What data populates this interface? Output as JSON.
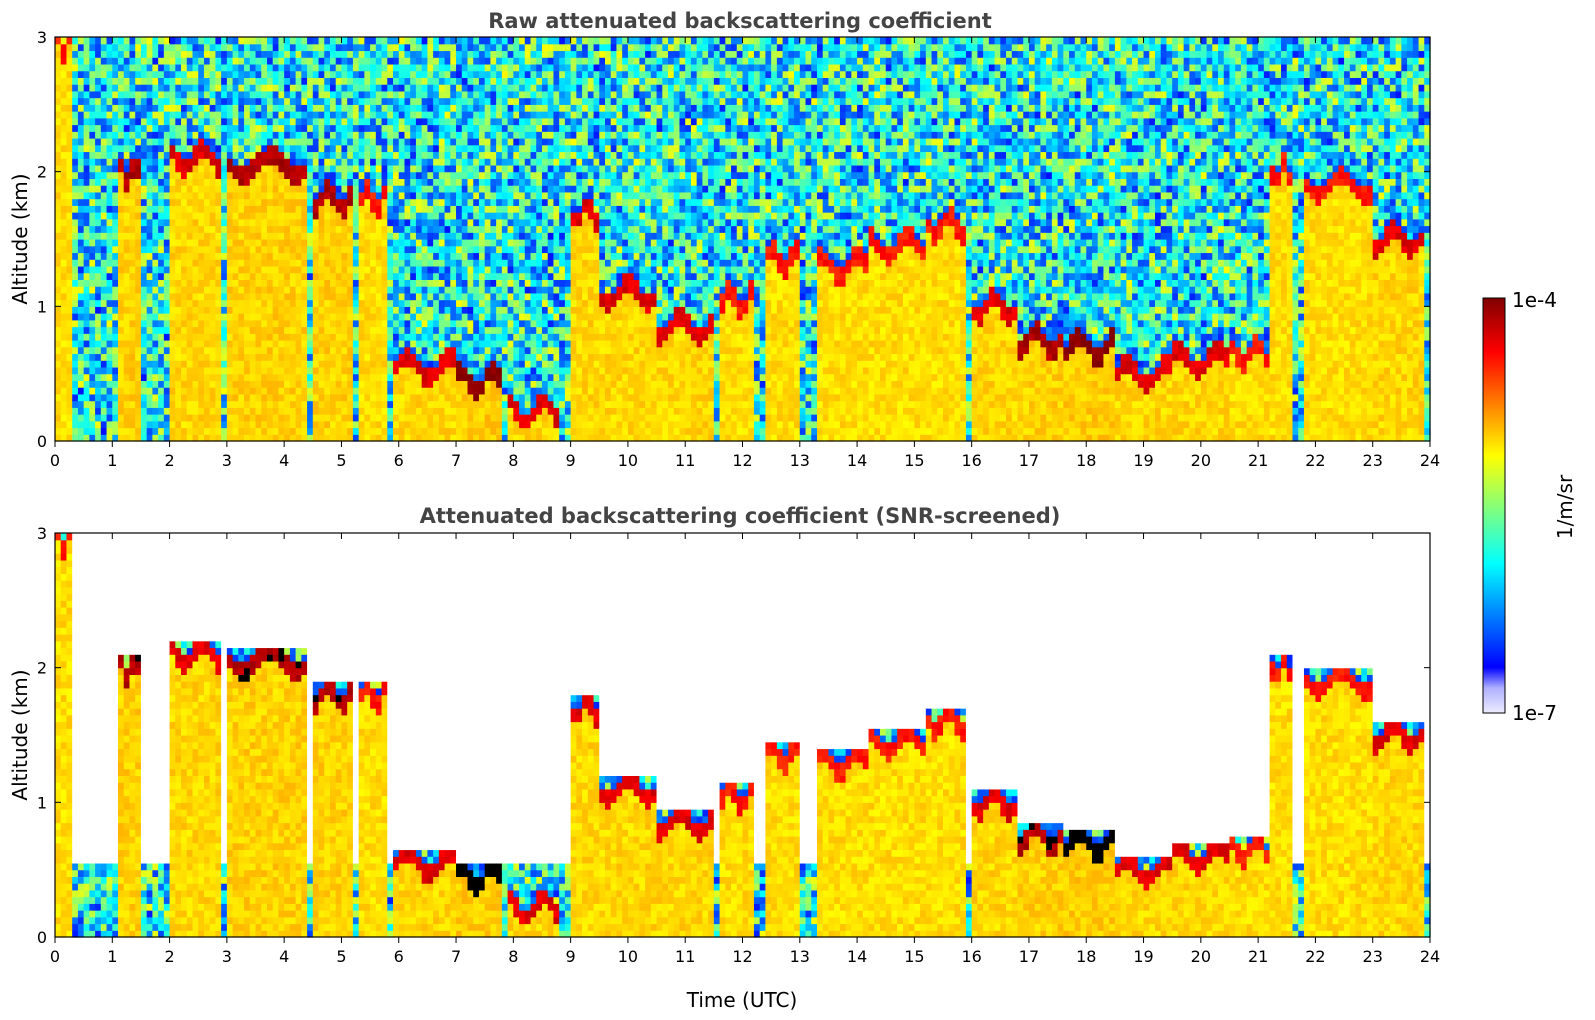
{
  "chart_data": [
    {
      "type": "heatmap",
      "title": "Raw attenuated backscattering coefficient",
      "xlabel": "",
      "ylabel": "Altitude (km)",
      "xlim": [
        0,
        24
      ],
      "ylim": [
        0,
        3
      ],
      "xticks": [
        "0",
        "1",
        "2",
        "3",
        "4",
        "5",
        "6",
        "7",
        "8",
        "9",
        "10",
        "11",
        "12",
        "13",
        "14",
        "15",
        "16",
        "17",
        "18",
        "19",
        "20",
        "21",
        "22",
        "23",
        "24"
      ],
      "yticks": [
        "0",
        "1",
        "2",
        "3"
      ],
      "screened": false,
      "cloud_layers": [
        {
          "start": 0.0,
          "end": 0.3,
          "alt": 2.95,
          "intensity": 0.85
        },
        {
          "start": 1.1,
          "end": 1.5,
          "alt": 2.0,
          "intensity": 0.95
        },
        {
          "start": 2.0,
          "end": 2.9,
          "alt": 2.1,
          "intensity": 0.9
        },
        {
          "start": 3.0,
          "end": 4.4,
          "alt": 2.05,
          "intensity": 0.95
        },
        {
          "start": 4.5,
          "end": 5.2,
          "alt": 1.8,
          "intensity": 0.95
        },
        {
          "start": 5.3,
          "end": 5.8,
          "alt": 1.8,
          "intensity": 0.85
        },
        {
          "start": 5.9,
          "end": 7.0,
          "alt": 0.55,
          "intensity": 0.9
        },
        {
          "start": 7.0,
          "end": 7.8,
          "alt": 0.45,
          "intensity": 1.0
        },
        {
          "start": 7.9,
          "end": 8.8,
          "alt": 0.22,
          "intensity": 0.9
        },
        {
          "start": 9.0,
          "end": 9.5,
          "alt": 1.7,
          "intensity": 0.9
        },
        {
          "start": 9.5,
          "end": 10.5,
          "alt": 1.1,
          "intensity": 0.9
        },
        {
          "start": 10.5,
          "end": 11.5,
          "alt": 0.85,
          "intensity": 0.9
        },
        {
          "start": 11.6,
          "end": 12.2,
          "alt": 1.05,
          "intensity": 0.85
        },
        {
          "start": 12.4,
          "end": 13.0,
          "alt": 1.35,
          "intensity": 0.85
        },
        {
          "start": 13.3,
          "end": 14.2,
          "alt": 1.3,
          "intensity": 0.85
        },
        {
          "start": 14.2,
          "end": 15.2,
          "alt": 1.45,
          "intensity": 0.85
        },
        {
          "start": 15.2,
          "end": 15.9,
          "alt": 1.6,
          "intensity": 0.85
        },
        {
          "start": 16.0,
          "end": 16.8,
          "alt": 1.0,
          "intensity": 0.9
        },
        {
          "start": 16.8,
          "end": 17.6,
          "alt": 0.75,
          "intensity": 0.95
        },
        {
          "start": 17.6,
          "end": 18.5,
          "alt": 0.7,
          "intensity": 1.0
        },
        {
          "start": 18.5,
          "end": 19.5,
          "alt": 0.5,
          "intensity": 0.9
        },
        {
          "start": 19.5,
          "end": 20.5,
          "alt": 0.6,
          "intensity": 0.9
        },
        {
          "start": 20.5,
          "end": 21.2,
          "alt": 0.65,
          "intensity": 0.85
        },
        {
          "start": 21.2,
          "end": 21.6,
          "alt": 2.0,
          "intensity": 0.85
        },
        {
          "start": 21.8,
          "end": 23.0,
          "alt": 1.9,
          "intensity": 0.85
        },
        {
          "start": 23.0,
          "end": 23.9,
          "alt": 1.5,
          "intensity": 0.9
        }
      ]
    },
    {
      "type": "heatmap",
      "title": "Attenuated backscattering coefficient (SNR-screened)",
      "xlabel": "Time (UTC)",
      "ylabel": "Altitude (km)",
      "xlim": [
        0,
        24
      ],
      "ylim": [
        0,
        3
      ],
      "xticks": [
        "0",
        "1",
        "2",
        "3",
        "4",
        "5",
        "6",
        "7",
        "8",
        "9",
        "10",
        "11",
        "12",
        "13",
        "14",
        "15",
        "16",
        "17",
        "18",
        "19",
        "20",
        "21",
        "22",
        "23",
        "24"
      ],
      "yticks": [
        "0",
        "1",
        "2",
        "3"
      ],
      "screened": true,
      "cloud_layers": [
        {
          "start": 0.0,
          "end": 0.3,
          "alt": 2.95,
          "intensity": 0.85
        },
        {
          "start": 1.1,
          "end": 1.5,
          "alt": 2.0,
          "intensity": 0.95
        },
        {
          "start": 2.0,
          "end": 2.9,
          "alt": 2.1,
          "intensity": 0.9
        },
        {
          "start": 3.0,
          "end": 4.4,
          "alt": 2.05,
          "intensity": 0.95
        },
        {
          "start": 4.5,
          "end": 5.2,
          "alt": 1.8,
          "intensity": 0.95
        },
        {
          "start": 5.3,
          "end": 5.8,
          "alt": 1.8,
          "intensity": 0.85
        },
        {
          "start": 5.9,
          "end": 7.0,
          "alt": 0.55,
          "intensity": 0.9
        },
        {
          "start": 7.0,
          "end": 7.8,
          "alt": 0.45,
          "intensity": 1.0
        },
        {
          "start": 7.9,
          "end": 8.8,
          "alt": 0.22,
          "intensity": 0.9
        },
        {
          "start": 9.0,
          "end": 9.5,
          "alt": 1.7,
          "intensity": 0.9
        },
        {
          "start": 9.5,
          "end": 10.5,
          "alt": 1.1,
          "intensity": 0.9
        },
        {
          "start": 10.5,
          "end": 11.5,
          "alt": 0.85,
          "intensity": 0.9
        },
        {
          "start": 11.6,
          "end": 12.2,
          "alt": 1.05,
          "intensity": 0.85
        },
        {
          "start": 12.4,
          "end": 13.0,
          "alt": 1.35,
          "intensity": 0.85
        },
        {
          "start": 13.3,
          "end": 14.2,
          "alt": 1.3,
          "intensity": 0.85
        },
        {
          "start": 14.2,
          "end": 15.2,
          "alt": 1.45,
          "intensity": 0.85
        },
        {
          "start": 15.2,
          "end": 15.9,
          "alt": 1.6,
          "intensity": 0.85
        },
        {
          "start": 16.0,
          "end": 16.8,
          "alt": 1.0,
          "intensity": 0.9
        },
        {
          "start": 16.8,
          "end": 17.6,
          "alt": 0.75,
          "intensity": 0.95
        },
        {
          "start": 17.6,
          "end": 18.5,
          "alt": 0.7,
          "intensity": 1.0
        },
        {
          "start": 18.5,
          "end": 19.5,
          "alt": 0.5,
          "intensity": 0.9
        },
        {
          "start": 19.5,
          "end": 20.5,
          "alt": 0.6,
          "intensity": 0.9
        },
        {
          "start": 20.5,
          "end": 21.2,
          "alt": 0.65,
          "intensity": 0.85
        },
        {
          "start": 21.2,
          "end": 21.6,
          "alt": 2.0,
          "intensity": 0.85
        },
        {
          "start": 21.8,
          "end": 23.0,
          "alt": 1.9,
          "intensity": 0.85
        },
        {
          "start": 23.0,
          "end": 23.9,
          "alt": 1.5,
          "intensity": 0.9
        }
      ]
    }
  ],
  "colorbar": {
    "label": "1/m/sr",
    "max_label": "1e-4",
    "min_label": "1e-7",
    "scale": "log",
    "colormap": "jet",
    "colors": [
      "#ececff",
      "#0000ff",
      "#00ffff",
      "#ffff00",
      "#ff0000",
      "#800000"
    ]
  }
}
